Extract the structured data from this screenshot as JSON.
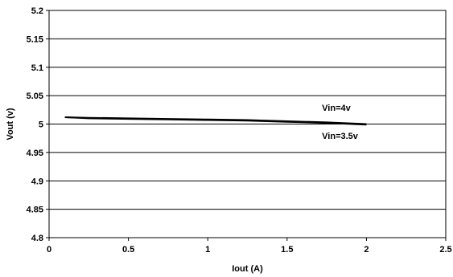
{
  "chart_data": {
    "type": "line",
    "xlabel": "Iout (A)",
    "ylabel": "Vout (v)",
    "xlim": [
      0,
      2.5
    ],
    "ylim": [
      4.8,
      5.2
    ],
    "x_ticks": [
      "0",
      "0.5",
      "1",
      "1.5",
      "2",
      "2.5"
    ],
    "y_ticks": [
      "4.8",
      "4.85",
      "4.9",
      "4.95",
      "5",
      "5.05",
      "5.1",
      "5.15",
      "5.2"
    ],
    "grid": "horizontal",
    "series": [
      {
        "name": "Vin=4v",
        "color": "#000000",
        "x": [
          0.1,
          0.25,
          0.5,
          0.75,
          1.0,
          1.25,
          1.5,
          1.75,
          2.0
        ],
        "y": [
          5.012,
          5.011,
          5.01,
          5.009,
          5.008,
          5.007,
          5.005,
          5.003,
          5.0
        ]
      },
      {
        "name": "Vin=3.5v",
        "color": "#000000",
        "x": [
          0.1,
          0.25,
          0.5,
          0.75,
          1.0,
          1.25,
          1.5,
          1.75,
          2.0
        ],
        "y": [
          5.012,
          5.01,
          5.009,
          5.008,
          5.007,
          5.006,
          5.004,
          5.002,
          4.999
        ]
      }
    ]
  }
}
